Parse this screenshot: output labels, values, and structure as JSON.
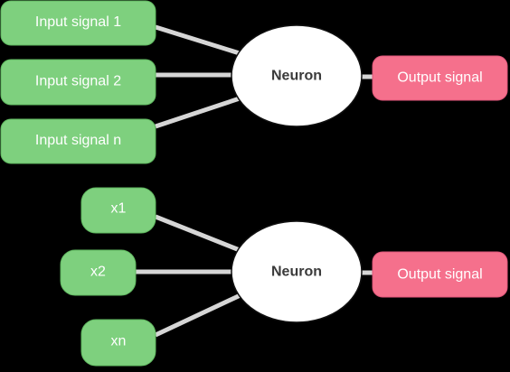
{
  "colors": {
    "background": "#000000",
    "input_fill": "#7ed07e",
    "input_stroke": "#5fb85f",
    "output_fill": "#f5708c",
    "output_stroke": "#e0567a",
    "neuron_fill": "#ffffff",
    "neuron_stroke": "#111111",
    "connector": "#d6d6d6"
  },
  "top_diagram": {
    "inputs": [
      "Input signal 1",
      "Input signal 2",
      "Input signal n"
    ],
    "neuron_label": "Neuron",
    "output_label": "Output signal"
  },
  "bottom_diagram": {
    "inputs": [
      "x1",
      "x2",
      "xn"
    ],
    "neuron_label": "Neuron",
    "output_label": "Output signal"
  }
}
